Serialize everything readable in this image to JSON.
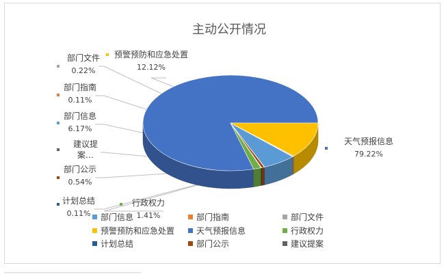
{
  "chart_data": {
    "type": "pie",
    "title": "主动公开情况",
    "unit": "%",
    "slices": [
      {
        "name": "天气预报信息",
        "value": 79.22,
        "color": "#4472C4",
        "label": "天气预报信息",
        "value_text": "79.22%"
      },
      {
        "name": "行政权力",
        "value": 1.41,
        "color": "#70AD47",
        "label": "行政权力",
        "value_text": "1.41%"
      },
      {
        "name": "计划总结",
        "value": 0.11,
        "color": "#255E91",
        "label": "计划总结",
        "value_text": "0.11%"
      },
      {
        "name": "部门公示",
        "value": 0.54,
        "color": "#9E480E",
        "label": "部门公示",
        "value_text": "0.54%"
      },
      {
        "name": "建议提案",
        "value": 0.05,
        "color": "#636363",
        "label": "建议提\n案…",
        "value_text": ""
      },
      {
        "name": "部门信息",
        "value": 6.17,
        "color": "#5B9BD5",
        "label": "部门信息",
        "value_text": "6.17%"
      },
      {
        "name": "部门指南",
        "value": 0.11,
        "color": "#ED7D31",
        "label": "部门指南",
        "value_text": "0.11%"
      },
      {
        "name": "部门文件",
        "value": 0.22,
        "color": "#A5A5A5",
        "label": "部门文件",
        "value_text": "0.22%"
      },
      {
        "name": "预警预防和应急处置",
        "value": 12.12,
        "color": "#FFC000",
        "label": "预警预防和应急处置",
        "value_text": "12.12%"
      }
    ],
    "legend": {
      "position": "bottom",
      "rows": [
        [
          "部门信息",
          "部门指南",
          "部门文件"
        ],
        [
          "预警预防和应急处置",
          "天气预报信息",
          "行政权力"
        ],
        [
          "计划总结",
          "部门公示",
          "建议提案"
        ]
      ]
    }
  }
}
